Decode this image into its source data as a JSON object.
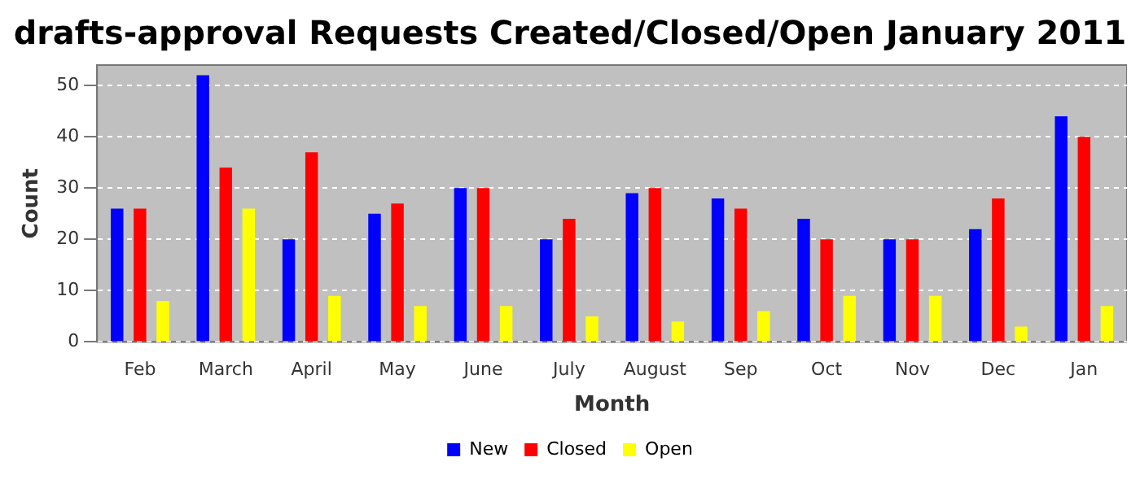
{
  "chart_data": {
    "type": "bar",
    "title": "drafts-approval Requests Created/Closed/Open January 2011",
    "xlabel": "Month",
    "ylabel": "Count",
    "categories": [
      "Feb",
      "March",
      "April",
      "May",
      "June",
      "July",
      "August",
      "Sep",
      "Oct",
      "Nov",
      "Dec",
      "Jan"
    ],
    "series": [
      {
        "name": "New",
        "color": "#0000ff",
        "values": [
          26,
          52,
          20,
          25,
          30,
          20,
          29,
          28,
          24,
          20,
          22,
          44
        ]
      },
      {
        "name": "Closed",
        "color": "#ff0000",
        "values": [
          26,
          34,
          37,
          27,
          30,
          24,
          30,
          26,
          20,
          20,
          28,
          40
        ]
      },
      {
        "name": "Open",
        "color": "#ffff00",
        "values": [
          8,
          26,
          9,
          7,
          7,
          5,
          4,
          6,
          9,
          9,
          3,
          7
        ]
      }
    ],
    "ylim": [
      0,
      54
    ],
    "yticks": [
      0,
      10,
      20,
      30,
      40,
      50
    ],
    "grid": "y",
    "legend": "bottom"
  }
}
